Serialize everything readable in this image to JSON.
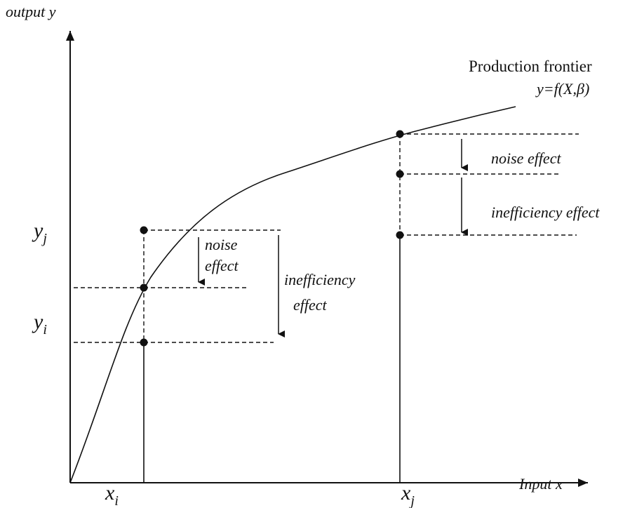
{
  "axes": {
    "y_label": "output y",
    "x_label": "Input x"
  },
  "frontier": {
    "label": "Production frontier",
    "formula": "y=f(X,β)"
  },
  "right_annotations": {
    "noise": "noise effect",
    "inefficiency": "inefficiency effect"
  },
  "left_annotations": {
    "noise": [
      "noise",
      "effect"
    ],
    "inefficiency": [
      "inefficiency",
      "effect"
    ]
  },
  "y_labels": [
    {
      "main": "y",
      "sub": "j"
    },
    {
      "main": "y",
      "sub": "i"
    }
  ],
  "x_labels": [
    {
      "main": "x",
      "sub": "i"
    },
    {
      "main": "x",
      "sub": "j"
    }
  ]
}
